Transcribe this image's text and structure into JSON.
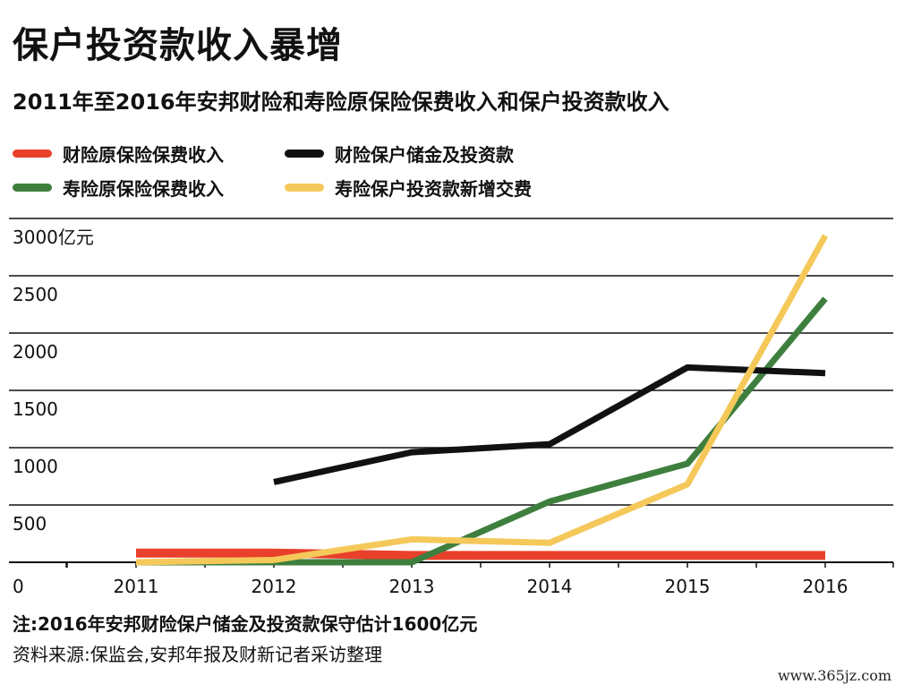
{
  "chart_data": {
    "type": "line",
    "title": "保户投资款收入暴增",
    "subtitle": "2011年至2016年安邦财险和寿险原保险保费收入和保户投资款收入",
    "y_unit_label": "3000亿元",
    "x": [
      "2011",
      "2012",
      "2013",
      "2014",
      "2015",
      "2016"
    ],
    "ylim": [
      0,
      3000
    ],
    "y_ticks": [
      0,
      500,
      1000,
      1500,
      2000,
      2500,
      3000
    ],
    "y_tick_labels": [
      "0",
      "500",
      "1000",
      "1500",
      "2000",
      "2500",
      "3000亿元"
    ],
    "grid": true,
    "legend_position": "top",
    "series": [
      {
        "name": "财险原保险保费收入",
        "color": "#e8402a",
        "values": [
          80,
          80,
          60,
          60,
          60,
          60
        ]
      },
      {
        "name": "寿险原保险保费收入",
        "color": "#3e7f3e",
        "values": [
          0,
          0,
          0,
          530,
          860,
          2300
        ]
      },
      {
        "name": "财险保户储金及投资款",
        "color": "#111111",
        "values": [
          null,
          700,
          960,
          1030,
          1700,
          1650
        ]
      },
      {
        "name": "寿险保户投资款新增交费",
        "color": "#f5c85a",
        "values": [
          0,
          20,
          200,
          170,
          680,
          2850
        ]
      }
    ],
    "notes": [
      "注:2016年安邦财险保户储金及投资款保守估计1600亿元",
      "资料来源:保监会,安邦年报及财新记者采访整理"
    ]
  },
  "watermark": "www.365jz.com"
}
